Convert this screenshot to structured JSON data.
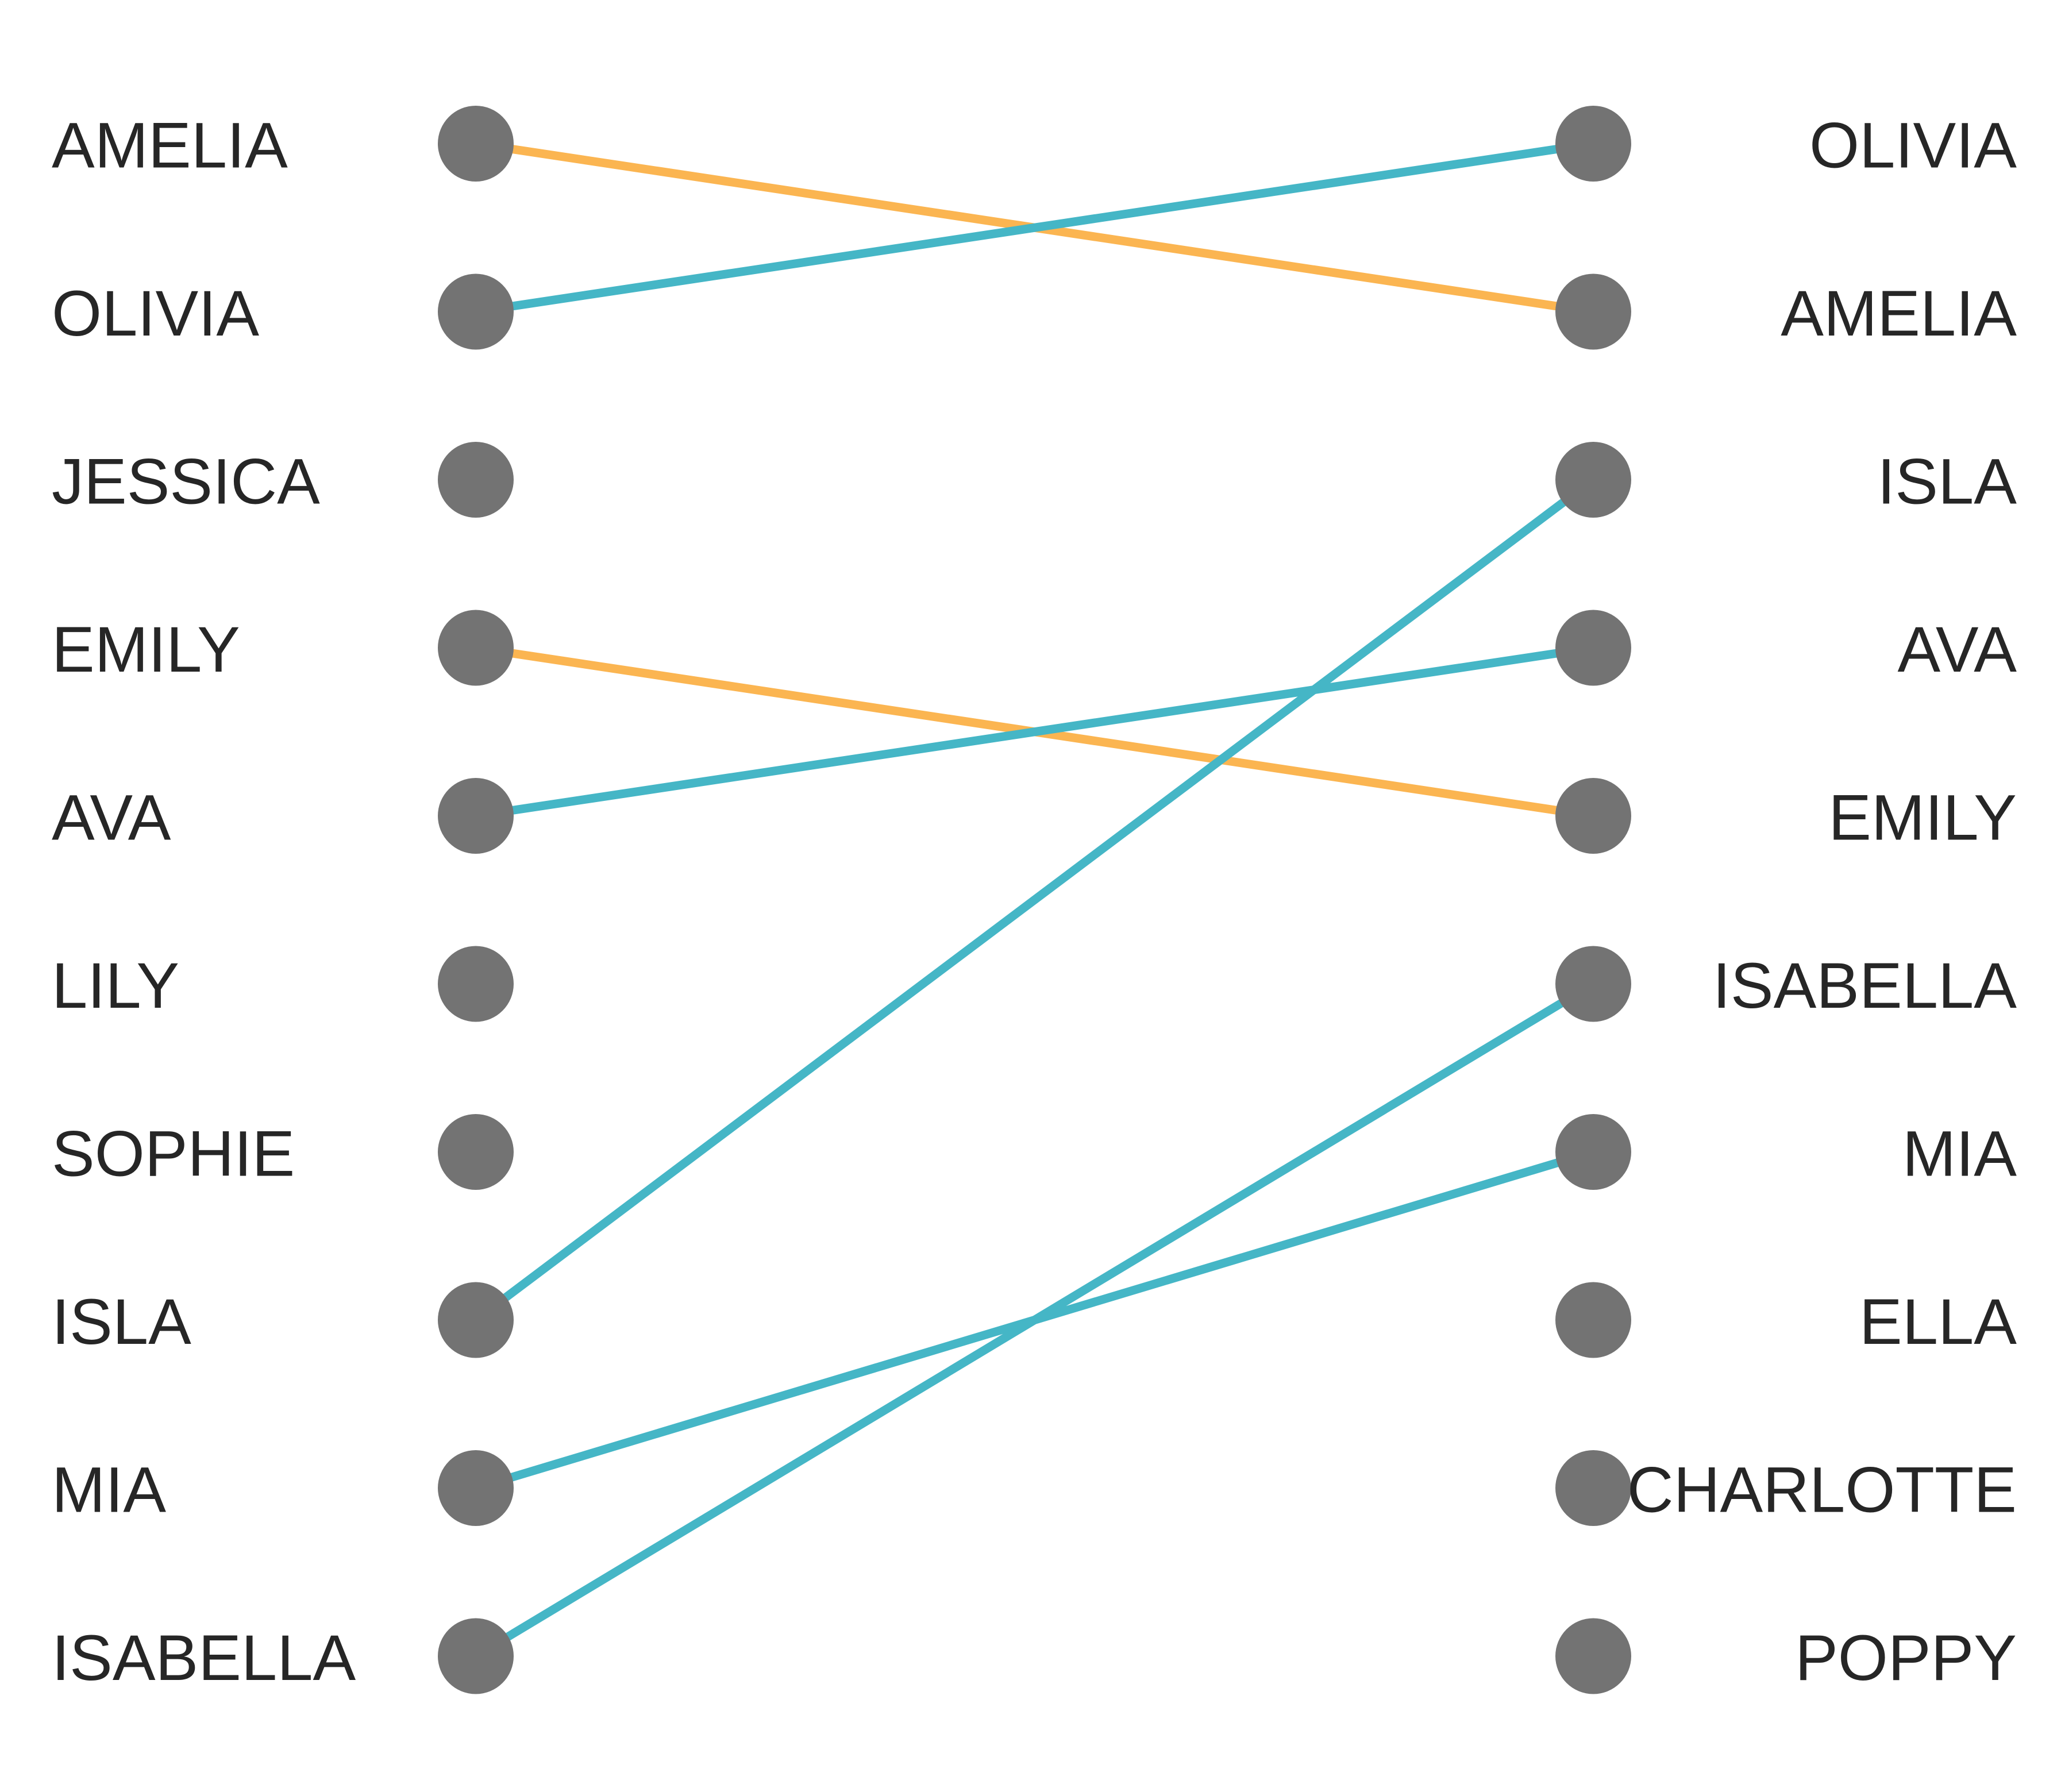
{
  "chart_data": {
    "type": "slope",
    "title": "",
    "xlabel": "",
    "ylabel": "",
    "left": {
      "names": [
        "AMELIA",
        "OLIVIA",
        "JESSICA",
        "EMILY",
        "AVA",
        "LILY",
        "SOPHIE",
        "ISLA",
        "MIA",
        "ISABELLA"
      ]
    },
    "right": {
      "names": [
        "OLIVIA",
        "AMELIA",
        "ISLA",
        "AVA",
        "EMILY",
        "ISABELLA",
        "MIA",
        "ELLA",
        "CHARLOTTE",
        "POPPY"
      ]
    },
    "links": [
      {
        "name": "AMELIA",
        "left_rank": 1,
        "right_rank": 2,
        "direction": "down"
      },
      {
        "name": "OLIVIA",
        "left_rank": 2,
        "right_rank": 1,
        "direction": "up"
      },
      {
        "name": "EMILY",
        "left_rank": 4,
        "right_rank": 5,
        "direction": "down"
      },
      {
        "name": "AVA",
        "left_rank": 5,
        "right_rank": 4,
        "direction": "up"
      },
      {
        "name": "ISLA",
        "left_rank": 8,
        "right_rank": 3,
        "direction": "up"
      },
      {
        "name": "MIA",
        "left_rank": 9,
        "right_rank": 7,
        "direction": "up"
      },
      {
        "name": "ISABELLA",
        "left_rank": 10,
        "right_rank": 6,
        "direction": "up"
      }
    ],
    "colors": {
      "up": "#45b6c6",
      "down": "#fbb551",
      "dot": "#737373",
      "text": "#262626"
    }
  }
}
